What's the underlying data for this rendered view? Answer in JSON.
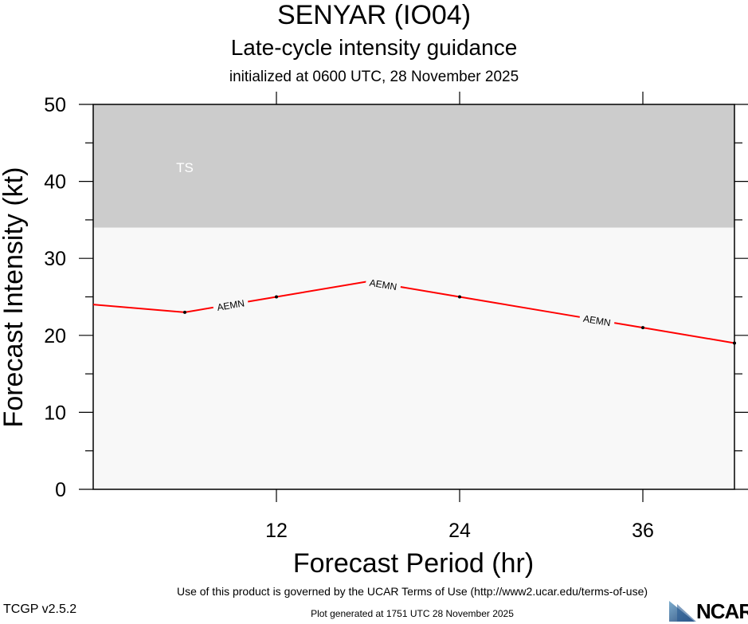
{
  "header": {
    "title": "SENYAR (IO04)",
    "subtitle": "Late-cycle intensity guidance",
    "initialized": "initialized at 0600 UTC, 28 November 2025"
  },
  "footer": {
    "terms": "Use of this product is governed by the UCAR Terms of Use (http://www2.ucar.edu/terms-of-use)",
    "generated": "Plot generated at 1751 UTC   28 November 2025",
    "version": "TCGP v2.5.2",
    "logo": "NCAR"
  },
  "chart_data": {
    "type": "line",
    "title": "SENYAR (IO04)",
    "xlabel": "Forecast Period (hr)",
    "ylabel": "Forecast Intensity (kt)",
    "xlim": [
      0,
      42
    ],
    "ylim": [
      0,
      50
    ],
    "xticks": [
      12,
      24,
      36
    ],
    "yticks": [
      0,
      10,
      20,
      30,
      40,
      50
    ],
    "bands": [
      {
        "label": "TS",
        "from": 34,
        "to": 50,
        "color": "#cccccc"
      }
    ],
    "plot_background": "#f8f8f8",
    "series": [
      {
        "name": "AEMN",
        "color": "#ff0000",
        "x": [
          0,
          6,
          12,
          18,
          24,
          30,
          36,
          42
        ],
        "y": [
          24,
          23,
          25,
          27,
          25,
          23,
          21,
          19
        ],
        "markers": [
          6,
          12,
          18,
          24,
          36,
          42
        ],
        "labels_at": [
          9,
          19,
          33
        ]
      }
    ]
  }
}
